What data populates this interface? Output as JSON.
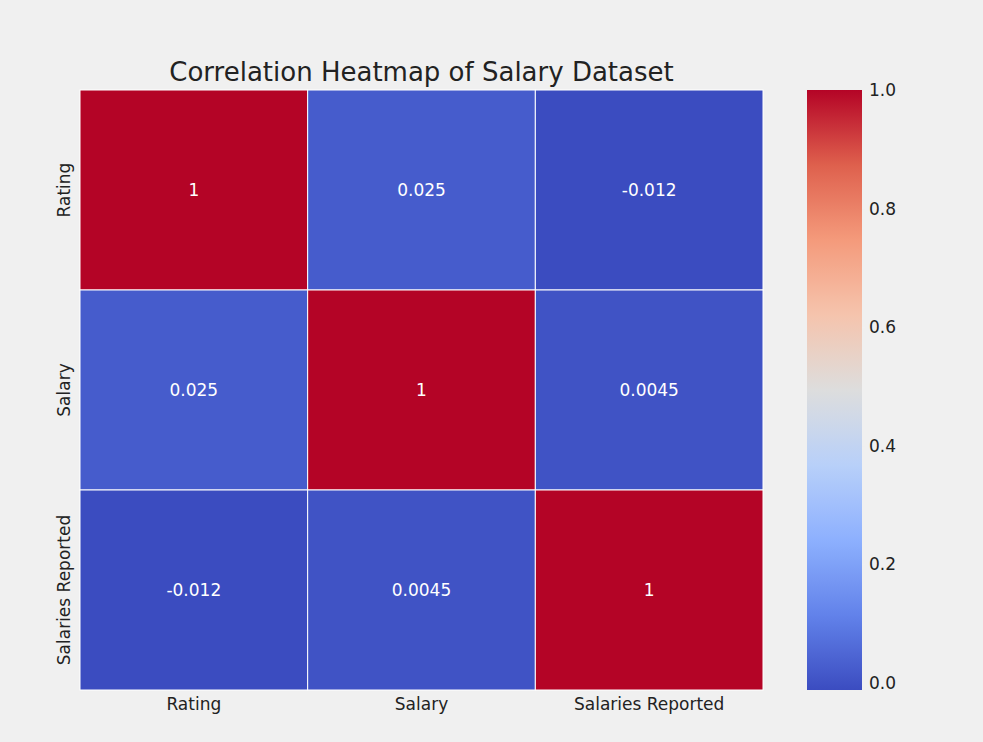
{
  "chart_data": {
    "type": "heatmap",
    "title": "Correlation Heatmap of Salary Dataset",
    "x_categories": [
      "Rating",
      "Salary",
      "Salaries Reported"
    ],
    "y_categories": [
      "Rating",
      "Salary",
      "Salaries Reported"
    ],
    "cells": [
      [
        1,
        0.025,
        -0.012
      ],
      [
        0.025,
        1,
        0.0045
      ],
      [
        -0.012,
        0.0045,
        1
      ]
    ],
    "color": "coolwarm",
    "colorbar_range": [
      -0.012,
      1
    ],
    "colorbar_ticks": [
      {
        "value": 0,
        "label": "0.0"
      },
      {
        "value": 0.2,
        "label": "0.2"
      },
      {
        "value": 0.4,
        "label": "0.4"
      },
      {
        "value": 0.6,
        "label": "0.6"
      },
      {
        "value": 0.8,
        "label": "0.8"
      },
      {
        "value": 1,
        "label": "1.0"
      }
    ],
    "data_labels": true
  }
}
